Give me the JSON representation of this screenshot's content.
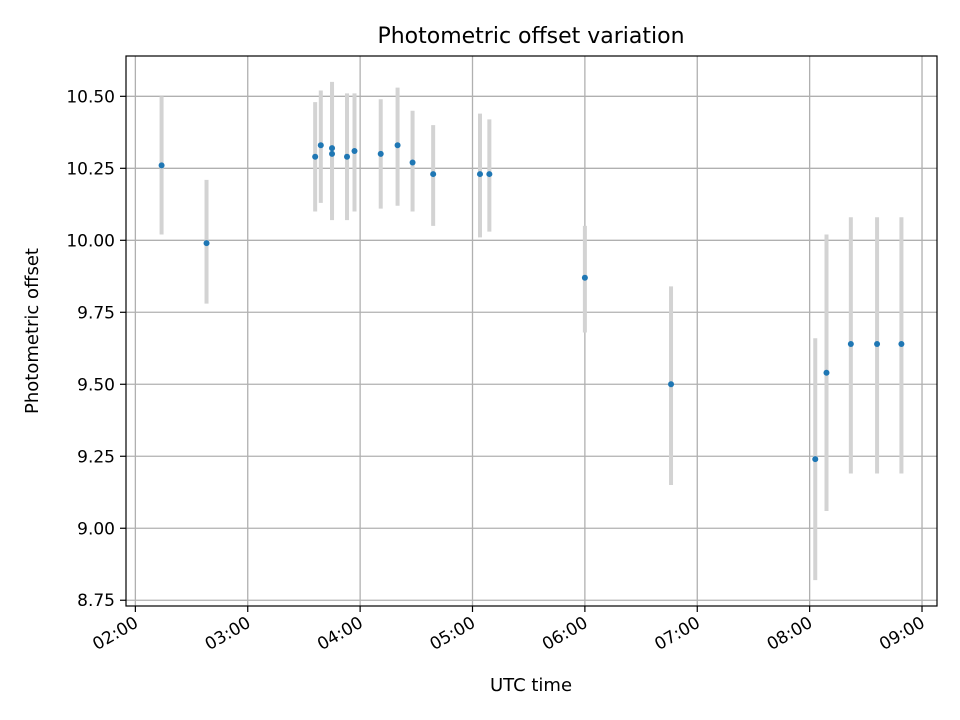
{
  "chart_data": {
    "type": "scatter",
    "title": "Photometric offset variation",
    "xlabel": "UTC time",
    "ylabel": "Photometric offset",
    "x_ticks": [
      "02:00",
      "03:00",
      "04:00",
      "05:00",
      "06:00",
      "07:00",
      "08:00",
      "09:00"
    ],
    "y_ticks": [
      "8.75",
      "9.00",
      "9.25",
      "9.50",
      "9.75",
      "10.00",
      "10.25",
      "10.50"
    ],
    "xlim": [
      "01:55",
      "09:08"
    ],
    "ylim": [
      8.73,
      10.64
    ],
    "grid": true,
    "colors": {
      "point": "#1f77b4",
      "errorbar": "#d3d3d3",
      "grid": "#b0b0b0"
    },
    "points": [
      {
        "t": "02:14",
        "y": 10.26,
        "lo": 10.02,
        "hi": 10.5
      },
      {
        "t": "02:38",
        "y": 9.99,
        "lo": 9.78,
        "hi": 10.21
      },
      {
        "t": "03:36",
        "y": 10.29,
        "lo": 10.1,
        "hi": 10.48
      },
      {
        "t": "03:39",
        "y": 10.33,
        "lo": 10.13,
        "hi": 10.52
      },
      {
        "t": "03:45",
        "y": 10.32,
        "lo": 10.09,
        "hi": 10.55
      },
      {
        "t": "03:45",
        "y": 10.3,
        "lo": 10.07,
        "hi": 10.53
      },
      {
        "t": "03:53",
        "y": 10.29,
        "lo": 10.07,
        "hi": 10.51
      },
      {
        "t": "03:57",
        "y": 10.31,
        "lo": 10.1,
        "hi": 10.51
      },
      {
        "t": "04:11",
        "y": 10.3,
        "lo": 10.11,
        "hi": 10.49
      },
      {
        "t": "04:20",
        "y": 10.33,
        "lo": 10.12,
        "hi": 10.53
      },
      {
        "t": "04:28",
        "y": 10.27,
        "lo": 10.1,
        "hi": 10.45
      },
      {
        "t": "04:39",
        "y": 10.23,
        "lo": 10.05,
        "hi": 10.4
      },
      {
        "t": "05:04",
        "y": 10.23,
        "lo": 10.01,
        "hi": 10.44
      },
      {
        "t": "05:09",
        "y": 10.23,
        "lo": 10.03,
        "hi": 10.42
      },
      {
        "t": "06:00",
        "y": 9.87,
        "lo": 9.68,
        "hi": 10.05
      },
      {
        "t": "06:46",
        "y": 9.5,
        "lo": 9.15,
        "hi": 9.84
      },
      {
        "t": "08:03",
        "y": 9.24,
        "lo": 8.82,
        "hi": 9.66
      },
      {
        "t": "08:09",
        "y": 9.54,
        "lo": 9.06,
        "hi": 10.02
      },
      {
        "t": "08:22",
        "y": 9.64,
        "lo": 9.19,
        "hi": 10.08
      },
      {
        "t": "08:36",
        "y": 9.64,
        "lo": 9.19,
        "hi": 10.08
      },
      {
        "t": "08:49",
        "y": 9.64,
        "lo": 9.19,
        "hi": 10.08
      }
    ]
  }
}
